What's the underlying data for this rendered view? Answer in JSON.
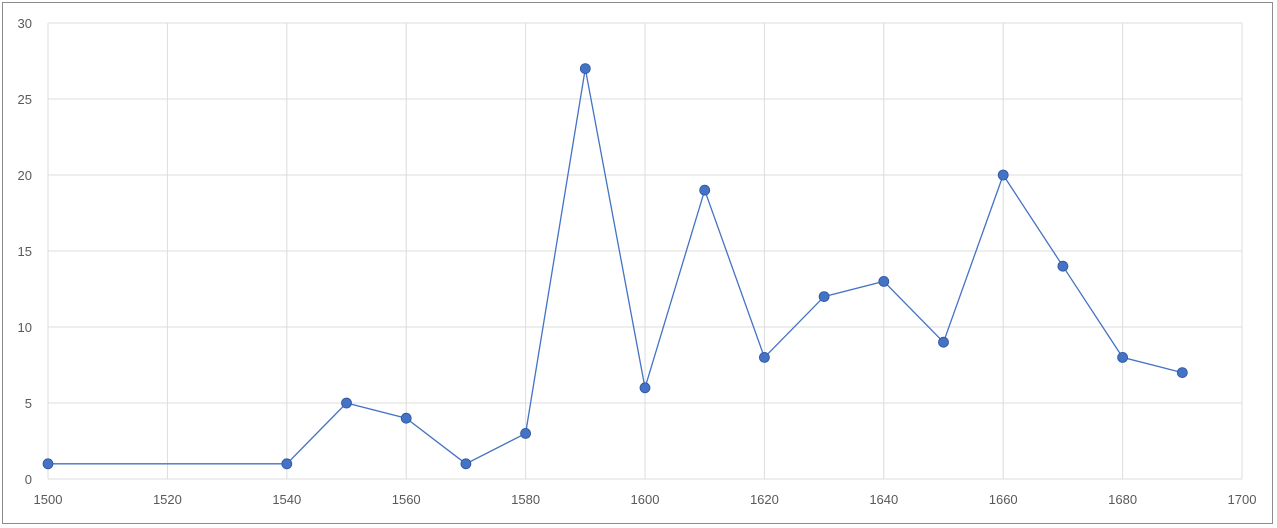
{
  "chart_data": {
    "type": "line",
    "title": "",
    "xlabel": "",
    "ylabel": "",
    "xlim": [
      1500,
      1700
    ],
    "ylim": [
      0,
      30
    ],
    "x_ticks": [
      1500,
      1520,
      1540,
      1560,
      1580,
      1600,
      1620,
      1640,
      1660,
      1680,
      1700
    ],
    "y_ticks": [
      0,
      5,
      10,
      15,
      20,
      25,
      30
    ],
    "grid": true,
    "legend": "none",
    "series": [
      {
        "color": "#4472c4",
        "x": [
          1500,
          1540,
          1550,
          1560,
          1570,
          1580,
          1590,
          1600,
          1610,
          1620,
          1630,
          1640,
          1650,
          1660,
          1670,
          1680,
          1690
        ],
        "y": [
          1,
          1,
          5,
          4,
          1,
          3,
          27,
          6,
          19,
          8,
          12,
          13,
          9,
          20,
          14,
          8,
          7
        ]
      }
    ]
  }
}
